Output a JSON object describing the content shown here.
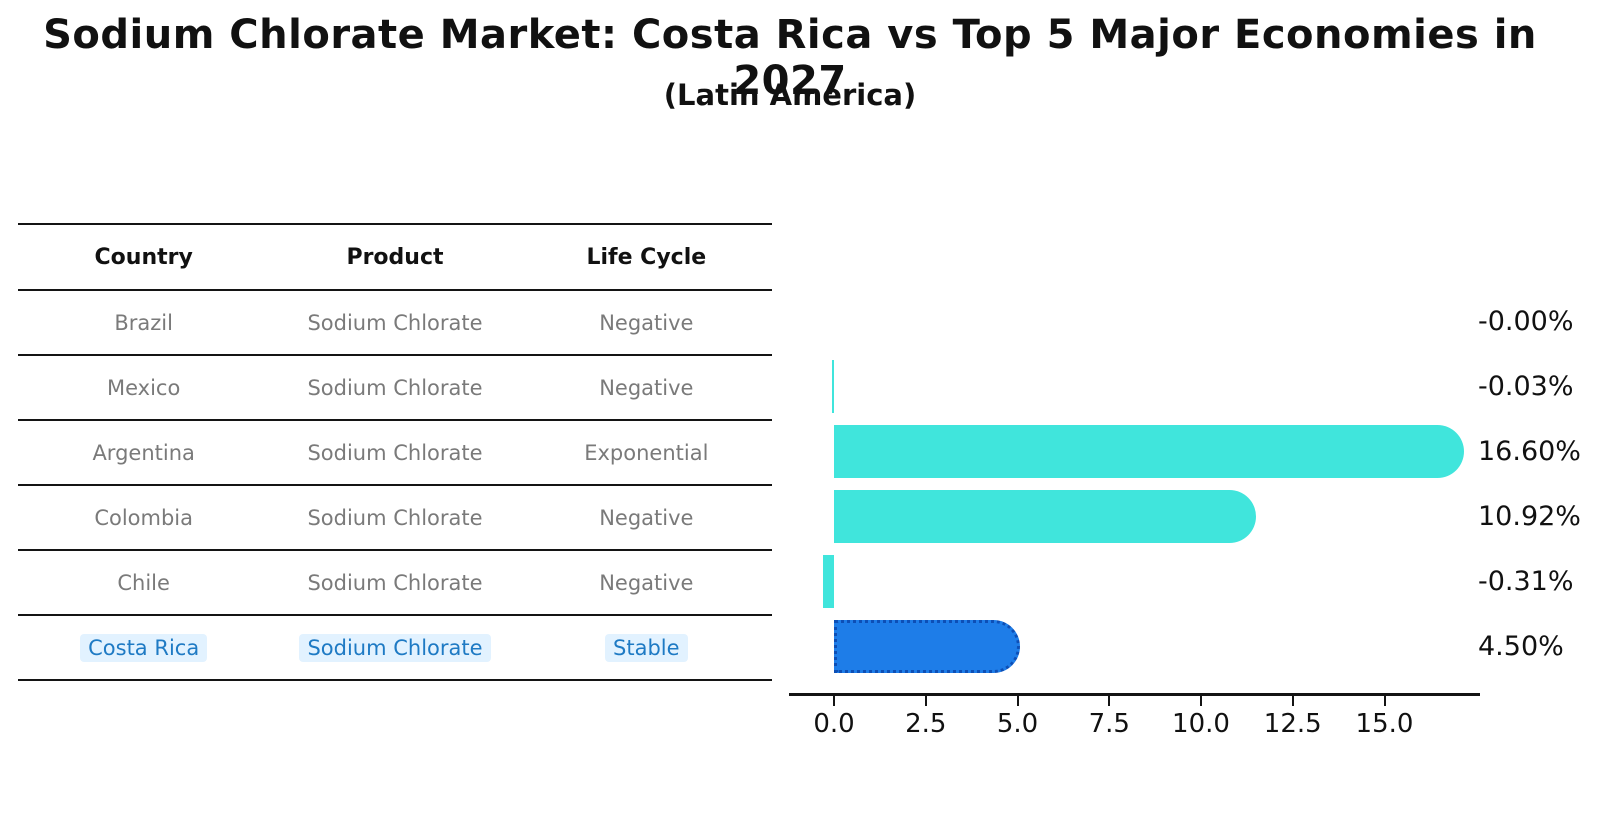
{
  "title": "Sodium Chlorate Market: Costa Rica vs Top 5 Major Economies in 2027",
  "subtitle": "(Latin America)",
  "table": {
    "headers": [
      "Country",
      "Product",
      "Life Cycle"
    ],
    "rows": [
      {
        "country": "Brazil",
        "product": "Sodium Chlorate",
        "life_cycle": "Negative",
        "highlighted": false
      },
      {
        "country": "Mexico",
        "product": "Sodium Chlorate",
        "life_cycle": "Negative",
        "highlighted": false
      },
      {
        "country": "Argentina",
        "product": "Sodium Chlorate",
        "life_cycle": "Exponential",
        "highlighted": false
      },
      {
        "country": "Colombia",
        "product": "Sodium Chlorate",
        "life_cycle": "Negative",
        "highlighted": false
      },
      {
        "country": "Chile",
        "product": "Sodium Chlorate",
        "life_cycle": "Negative",
        "highlighted": false
      },
      {
        "country": "Costa Rica",
        "product": "Sodium Chlorate",
        "life_cycle": "Stable",
        "highlighted": true
      }
    ]
  },
  "chart_data": {
    "type": "bar",
    "orientation": "horizontal",
    "title": "",
    "xlabel": "",
    "ylabel": "",
    "categories": [
      "Brazil",
      "Mexico",
      "Argentina",
      "Colombia",
      "Chile",
      "Costa Rica"
    ],
    "values": [
      -0.0,
      -0.03,
      16.6,
      10.92,
      -0.31,
      4.5
    ],
    "value_labels": [
      "-0.00%",
      "-0.03%",
      "16.60%",
      "10.92%",
      "-0.31%",
      "4.50%"
    ],
    "x_tick_values": [
      0,
      2.5,
      5,
      7.5,
      10,
      12.5,
      15
    ],
    "x_tick_labels": [
      "0.0",
      "2.5",
      "5.0",
      "7.5",
      "10.0",
      "12.5",
      "15.0"
    ],
    "xlim": [
      -1.22,
      17.6
    ],
    "grid": false,
    "legend": false,
    "bar_color": "#40e5dc",
    "highlight_bar_color": "#1e7de8",
    "highlight_border_color": "#0d4fb6",
    "highlight_index": 5
  },
  "colors": {
    "row_text": "#7a7a7a",
    "highlight_text": "#1e7ac4",
    "axis": "#141414",
    "label_text": "#111111"
  }
}
